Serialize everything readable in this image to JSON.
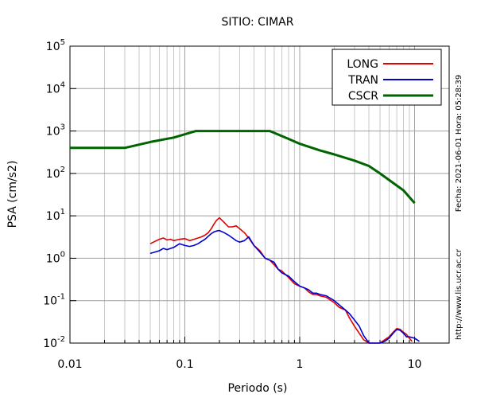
{
  "chart_data": {
    "type": "line",
    "title": "SITIO: CIMAR",
    "xlabel": "Periodo (s)",
    "ylabel": "PSA (cm/s2)",
    "xscale": "log",
    "yscale": "log",
    "xlim": [
      0.01,
      20
    ],
    "ylim": [
      0.01,
      100000
    ],
    "grid": true,
    "legend_position": "top-right",
    "x_tick_labels": [
      {
        "value": 0.01,
        "label": "0.01"
      },
      {
        "value": 0.1,
        "label": "0.1"
      },
      {
        "value": 1,
        "label": "1"
      },
      {
        "value": 10,
        "label": "10"
      }
    ],
    "y_tick_labels": [
      {
        "value": 0.01,
        "base": "10",
        "exp": "-2"
      },
      {
        "value": 0.1,
        "base": "10",
        "exp": "-1"
      },
      {
        "value": 1,
        "base": "10",
        "exp": "0"
      },
      {
        "value": 10,
        "base": "10",
        "exp": "1"
      },
      {
        "value": 100,
        "base": "10",
        "exp": "2"
      },
      {
        "value": 1000,
        "base": "10",
        "exp": "3"
      },
      {
        "value": 10000,
        "base": "10",
        "exp": "4"
      },
      {
        "value": 100000,
        "base": "10",
        "exp": "5"
      }
    ],
    "series": [
      {
        "name": "LONG",
        "color": "#e00000",
        "x": [
          0.05,
          0.055,
          0.06,
          0.065,
          0.07,
          0.075,
          0.08,
          0.085,
          0.09,
          0.1,
          0.11,
          0.12,
          0.13,
          0.14,
          0.15,
          0.16,
          0.17,
          0.18,
          0.19,
          0.2,
          0.22,
          0.24,
          0.26,
          0.28,
          0.3,
          0.33,
          0.36,
          0.4,
          0.45,
          0.5,
          0.55,
          0.6,
          0.65,
          0.7,
          0.8,
          0.9,
          1.0,
          1.1,
          1.2,
          1.3,
          1.4,
          1.5,
          1.7,
          2.0,
          2.2,
          2.5,
          2.7,
          3.0,
          3.3,
          3.6,
          4.0,
          4.5,
          5.0,
          5.5,
          6.0,
          6.5,
          7.0,
          7.5,
          8.0,
          8.5,
          9.0,
          9.5
        ],
        "y": [
          2.2,
          2.5,
          2.8,
          3.0,
          2.7,
          2.8,
          2.6,
          2.7,
          2.8,
          2.9,
          2.6,
          2.8,
          3.0,
          3.2,
          3.5,
          4.0,
          5.0,
          6.5,
          8.0,
          9.0,
          7.0,
          5.5,
          5.5,
          5.8,
          5.0,
          4.0,
          3.0,
          2.0,
          1.5,
          1.0,
          0.9,
          0.7,
          0.55,
          0.5,
          0.35,
          0.25,
          0.22,
          0.2,
          0.16,
          0.14,
          0.14,
          0.13,
          0.12,
          0.09,
          0.07,
          0.06,
          0.04,
          0.025,
          0.017,
          0.012,
          0.01,
          0.01,
          0.01,
          0.012,
          0.014,
          0.018,
          0.022,
          0.021,
          0.018,
          0.016,
          0.013,
          0.011
        ]
      },
      {
        "name": "TRAN",
        "color": "#0000d0",
        "x": [
          0.05,
          0.055,
          0.06,
          0.065,
          0.07,
          0.075,
          0.08,
          0.085,
          0.09,
          0.1,
          0.11,
          0.12,
          0.13,
          0.14,
          0.15,
          0.16,
          0.17,
          0.18,
          0.19,
          0.2,
          0.22,
          0.24,
          0.26,
          0.28,
          0.3,
          0.33,
          0.36,
          0.4,
          0.45,
          0.5,
          0.55,
          0.6,
          0.65,
          0.7,
          0.8,
          0.9,
          1.0,
          1.1,
          1.2,
          1.3,
          1.4,
          1.5,
          1.7,
          2.0,
          2.2,
          2.5,
          2.7,
          3.0,
          3.3,
          3.6,
          4.0,
          4.5,
          5.0,
          5.5,
          6.0,
          6.5,
          7.0,
          7.5,
          8.0,
          8.5,
          9.0,
          10.0,
          11.0
        ],
        "y": [
          1.3,
          1.4,
          1.5,
          1.7,
          1.6,
          1.7,
          1.8,
          2.0,
          2.2,
          2.0,
          1.9,
          2.0,
          2.2,
          2.5,
          2.8,
          3.3,
          3.8,
          4.2,
          4.4,
          4.5,
          4.0,
          3.5,
          3.0,
          2.6,
          2.4,
          2.6,
          3.2,
          2.0,
          1.4,
          1.0,
          0.9,
          0.8,
          0.55,
          0.45,
          0.38,
          0.28,
          0.22,
          0.2,
          0.18,
          0.15,
          0.15,
          0.14,
          0.13,
          0.1,
          0.08,
          0.06,
          0.05,
          0.035,
          0.025,
          0.015,
          0.01,
          0.01,
          0.01,
          0.011,
          0.013,
          0.017,
          0.021,
          0.02,
          0.017,
          0.014,
          0.014,
          0.013,
          0.011
        ]
      },
      {
        "name": "CSCR",
        "color": "#006400",
        "x": [
          0.01,
          0.03,
          0.05,
          0.08,
          0.125,
          0.55,
          0.8,
          1.0,
          1.5,
          2.0,
          3.0,
          4.0,
          5.0,
          6.0,
          8.0,
          10.0
        ],
        "y": [
          400,
          400,
          550,
          700,
          1000,
          1000,
          650,
          500,
          350,
          280,
          200,
          150,
          100,
          70,
          40,
          20
        ]
      }
    ],
    "side_texts": {
      "date": "Fecha: 2021-06-01 Hora: 05:28:39",
      "url": "http://www.lis.ucr.ac.cr"
    }
  }
}
